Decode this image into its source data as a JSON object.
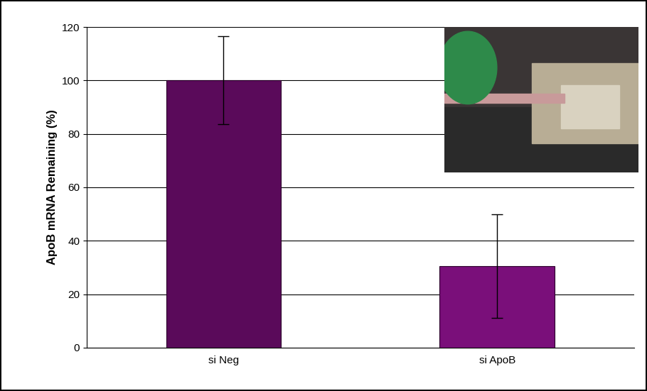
{
  "chart_data": {
    "type": "bar",
    "y_label": "ApoB mRNA Remaining (%)",
    "categories": [
      "si Neg",
      "si ApoB"
    ],
    "values": [
      100,
      30.5
    ],
    "errors": [
      16.5,
      19.5
    ],
    "colors": [
      "#5a0a5a",
      "#7a0f7a"
    ],
    "ylim": [
      0,
      120
    ],
    "yticks": [
      0,
      20,
      40,
      60,
      80,
      100,
      120
    ],
    "grid": true
  }
}
